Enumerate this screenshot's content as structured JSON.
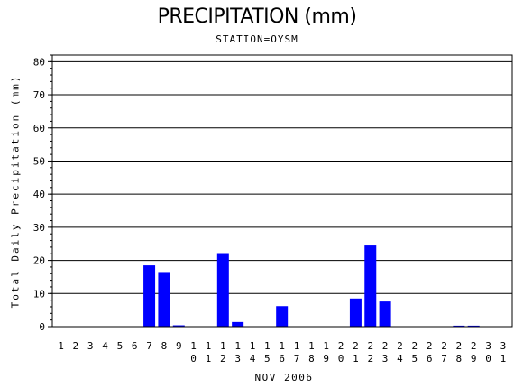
{
  "chart_data": {
    "type": "bar",
    "title": "PRECIPITATION (mm)",
    "subtitle": "STATION=OYSM",
    "xlabel": "NOV 2006",
    "ylabel": "Total Daily Precipitation (mm)",
    "categories": [
      "1",
      "2",
      "3",
      "4",
      "5",
      "6",
      "7",
      "8",
      "9",
      "10",
      "11",
      "12",
      "13",
      "14",
      "15",
      "16",
      "17",
      "18",
      "19",
      "20",
      "21",
      "22",
      "23",
      "24",
      "25",
      "26",
      "27",
      "28",
      "29",
      "30",
      "31"
    ],
    "values": [
      0,
      0,
      0,
      0,
      0,
      0,
      18.5,
      16.5,
      0.4,
      0,
      0,
      22.2,
      1.4,
      0,
      0,
      6.2,
      0,
      0,
      0,
      0,
      8.5,
      24.5,
      7.6,
      0,
      0,
      0,
      0,
      0.3,
      0.3,
      0,
      0
    ],
    "ylim": [
      0,
      82
    ],
    "yticks": [
      0,
      10,
      20,
      30,
      40,
      50,
      60,
      70,
      80
    ],
    "grid": true,
    "bar_color": "#0000ff"
  }
}
